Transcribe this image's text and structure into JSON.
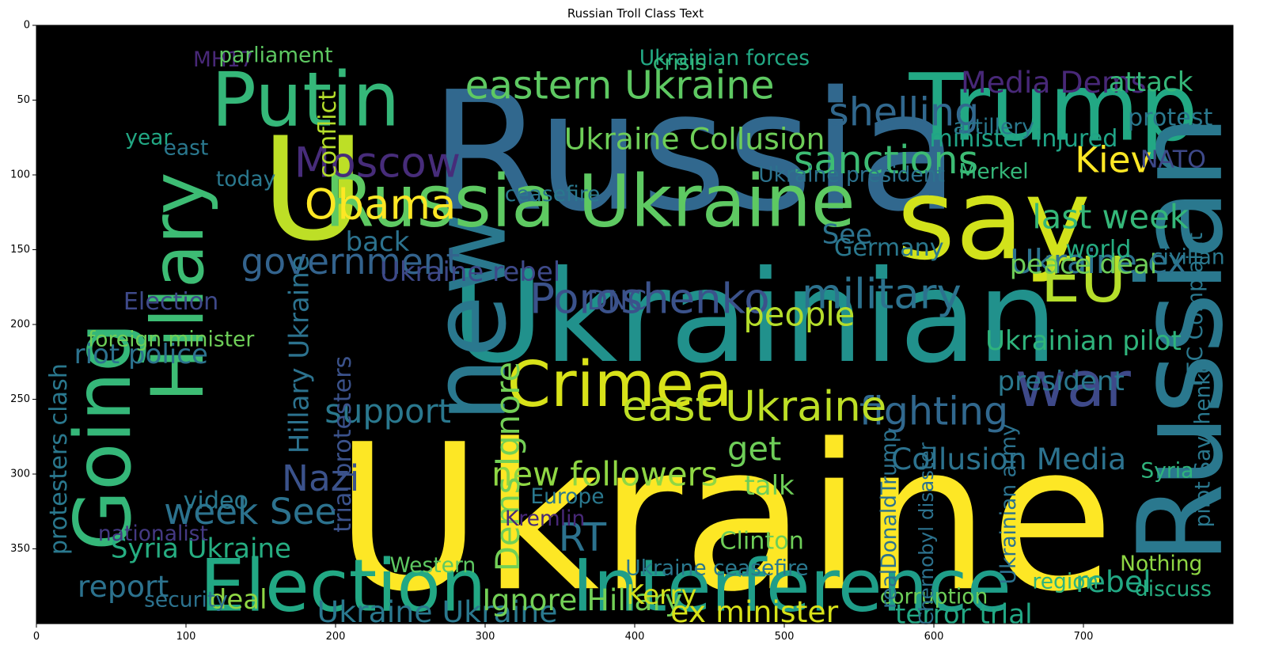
{
  "chart_data": {
    "type": "wordcloud",
    "title": "Russian Troll Class Text",
    "background": "#000000",
    "colormap": "viridis",
    "xlim": [
      0,
      800
    ],
    "ylim": [
      400,
      0
    ],
    "x_ticks": [
      0,
      100,
      200,
      300,
      400,
      500,
      600,
      700
    ],
    "y_ticks": [
      0,
      50,
      100,
      150,
      200,
      250,
      300,
      350
    ],
    "words": [
      {
        "text": "Ukraine",
        "x": 460,
        "y": 330,
        "size": 135,
        "color": "#fde725",
        "rotate": 0
      },
      {
        "text": "Russia",
        "x": 440,
        "y": 85,
        "size": 110,
        "color": "#31688e",
        "rotate": 0
      },
      {
        "text": "Ukrainian",
        "x": 480,
        "y": 195,
        "size": 85,
        "color": "#21918c",
        "rotate": 0
      },
      {
        "text": "Trump",
        "x": 680,
        "y": 55,
        "size": 62,
        "color": "#22a884",
        "rotate": 0
      },
      {
        "text": "say",
        "x": 640,
        "y": 130,
        "size": 75,
        "color": "#d2e21b",
        "rotate": 0
      },
      {
        "text": "U",
        "x": 185,
        "y": 110,
        "size": 95,
        "color": "#bddf26",
        "rotate": 0
      },
      {
        "text": "Russian",
        "x": 765,
        "y": 210,
        "size": 78,
        "color": "#2a788e",
        "rotate": -90
      },
      {
        "text": "new",
        "x": 290,
        "y": 195,
        "size": 68,
        "color": "#2a788e",
        "rotate": -90
      },
      {
        "text": "Putin",
        "x": 180,
        "y": 50,
        "size": 50,
        "color": "#35b779",
        "rotate": 0
      },
      {
        "text": "Hillary",
        "x": 95,
        "y": 175,
        "size": 48,
        "color": "#3dbc74",
        "rotate": -90
      },
      {
        "text": "Going",
        "x": 45,
        "y": 275,
        "size": 52,
        "color": "#35b779",
        "rotate": -90
      },
      {
        "text": "Russia Ukraine",
        "x": 370,
        "y": 118,
        "size": 48,
        "color": "#5ec962",
        "rotate": 0
      },
      {
        "text": "Election",
        "x": 205,
        "y": 375,
        "size": 48,
        "color": "#22a884",
        "rotate": 0
      },
      {
        "text": "Interference",
        "x": 505,
        "y": 375,
        "size": 48,
        "color": "#1f9e89",
        "rotate": 0
      },
      {
        "text": "Crimea",
        "x": 390,
        "y": 240,
        "size": 42,
        "color": "#d8e219",
        "rotate": 0
      },
      {
        "text": "war",
        "x": 693,
        "y": 240,
        "size": 42,
        "color": "#3e4989",
        "rotate": 0
      },
      {
        "text": "EU",
        "x": 700,
        "y": 170,
        "size": 42,
        "color": "#b5de2b",
        "rotate": 0
      },
      {
        "text": "eastern Ukraine",
        "x": 390,
        "y": 40,
        "size": 26,
        "color": "#5ec962",
        "rotate": 0
      },
      {
        "text": "Media Dems",
        "x": 680,
        "y": 38,
        "size": 20,
        "color": "#482878",
        "rotate": 0
      },
      {
        "text": "Ukraine Collusion",
        "x": 440,
        "y": 76,
        "size": 20,
        "color": "#6ece58",
        "rotate": 0
      },
      {
        "text": "shelling",
        "x": 580,
        "y": 58,
        "size": 26,
        "color": "#31688e",
        "rotate": 0
      },
      {
        "text": "sanctions",
        "x": 568,
        "y": 90,
        "size": 26,
        "color": "#3dbc74",
        "rotate": 0
      },
      {
        "text": "Kiev",
        "x": 720,
        "y": 90,
        "size": 24,
        "color": "#fde725",
        "rotate": 0
      },
      {
        "text": "last week",
        "x": 718,
        "y": 128,
        "size": 22,
        "color": "#35b779",
        "rotate": 0
      },
      {
        "text": "Moscow",
        "x": 228,
        "y": 92,
        "size": 28,
        "color": "#472c7a",
        "rotate": 0
      },
      {
        "text": "Obama",
        "x": 230,
        "y": 120,
        "size": 28,
        "color": "#fde725",
        "rotate": 0
      },
      {
        "text": "government",
        "x": 210,
        "y": 158,
        "size": 24,
        "color": "#33638d",
        "rotate": 0
      },
      {
        "text": "Poroshenko",
        "x": 410,
        "y": 183,
        "size": 28,
        "color": "#3b528b",
        "rotate": 0
      },
      {
        "text": "military",
        "x": 565,
        "y": 180,
        "size": 28,
        "color": "#2c728e",
        "rotate": 0
      },
      {
        "text": "people",
        "x": 510,
        "y": 193,
        "size": 22,
        "color": "#b5de2b",
        "rotate": 0
      },
      {
        "text": "Ukraine ex",
        "x": 710,
        "y": 158,
        "size": 22,
        "color": "#2c728e",
        "rotate": 0
      },
      {
        "text": "fighting",
        "x": 600,
        "y": 258,
        "size": 26,
        "color": "#31688e",
        "rotate": 0
      },
      {
        "text": "east Ukraine",
        "x": 480,
        "y": 255,
        "size": 28,
        "color": "#bddf26",
        "rotate": 0
      },
      {
        "text": "get",
        "x": 480,
        "y": 283,
        "size": 22,
        "color": "#6ece58",
        "rotate": 0
      },
      {
        "text": "new followers",
        "x": 380,
        "y": 300,
        "size": 22,
        "color": "#8fd744",
        "rotate": 0
      },
      {
        "text": "support",
        "x": 235,
        "y": 258,
        "size": 22,
        "color": "#2a788e",
        "rotate": 0
      },
      {
        "text": "Nazi",
        "x": 190,
        "y": 303,
        "size": 24,
        "color": "#3b528b",
        "rotate": 0
      },
      {
        "text": "week See",
        "x": 143,
        "y": 325,
        "size": 24,
        "color": "#2c728e",
        "rotate": 0
      },
      {
        "text": "RT",
        "x": 365,
        "y": 342,
        "size": 26,
        "color": "#2c728e",
        "rotate": 0
      },
      {
        "text": "Collusion Media",
        "x": 650,
        "y": 290,
        "size": 20,
        "color": "#2c728e",
        "rotate": 0
      },
      {
        "text": "Ukrainian pilot",
        "x": 700,
        "y": 211,
        "size": 18,
        "color": "#2fb47c",
        "rotate": 0
      },
      {
        "text": "president",
        "x": 685,
        "y": 238,
        "size": 18,
        "color": "#2a788e",
        "rotate": 0
      },
      {
        "text": "peace deal",
        "x": 700,
        "y": 160,
        "size": 18,
        "color": "#6ece58",
        "rotate": 0
      },
      {
        "text": "world",
        "x": 710,
        "y": 150,
        "size": 16,
        "color": "#26ad81",
        "rotate": 0
      },
      {
        "text": "rebel",
        "x": 720,
        "y": 372,
        "size": 20,
        "color": "#22a884",
        "rotate": 0
      },
      {
        "text": "Ukraine Ukraine",
        "x": 268,
        "y": 392,
        "size": 20,
        "color": "#2a788e",
        "rotate": 0
      },
      {
        "text": "Ignore Hillary",
        "x": 365,
        "y": 384,
        "size": 20,
        "color": "#73d056",
        "rotate": 0
      },
      {
        "text": "ex minister",
        "x": 480,
        "y": 392,
        "size": 20,
        "color": "#d8e219",
        "rotate": 0
      },
      {
        "text": "terror trial",
        "x": 620,
        "y": 394,
        "size": 18,
        "color": "#22a884",
        "rotate": 0
      },
      {
        "text": "report",
        "x": 58,
        "y": 375,
        "size": 20,
        "color": "#2c728e",
        "rotate": 0
      },
      {
        "text": "Kerry",
        "x": 418,
        "y": 381,
        "size": 18,
        "color": "#d2e21b",
        "rotate": 0
      },
      {
        "text": "Syria Ukraine",
        "x": 110,
        "y": 350,
        "size": 18,
        "color": "#26ad81",
        "rotate": 0
      },
      {
        "text": "riot police",
        "x": 70,
        "y": 220,
        "size": 18,
        "color": "#2c728e",
        "rotate": 0
      },
      {
        "text": "attack",
        "x": 745,
        "y": 38,
        "size": 18,
        "color": "#35b779",
        "rotate": 0
      },
      {
        "text": "protest",
        "x": 758,
        "y": 62,
        "size": 16,
        "color": "#2a788e",
        "rotate": 0
      },
      {
        "text": "NATO",
        "x": 760,
        "y": 90,
        "size": 16,
        "color": "#3e4989",
        "rotate": 0
      },
      {
        "text": "minister injured",
        "x": 660,
        "y": 76,
        "size": 16,
        "color": "#20a486",
        "rotate": 0
      },
      {
        "text": "Ukraine president",
        "x": 545,
        "y": 100,
        "size": 14,
        "color": "#2c728e",
        "rotate": 0
      },
      {
        "text": "Ukrainian forces",
        "x": 460,
        "y": 22,
        "size": 14,
        "color": "#22a884",
        "rotate": 0
      },
      {
        "text": "Ukraine rebel",
        "x": 290,
        "y": 165,
        "size": 18,
        "color": "#3e4989",
        "rotate": 0
      },
      {
        "text": "DNC",
        "x": 388,
        "y": 184,
        "size": 18,
        "color": "#3b528b",
        "rotate": 0
      },
      {
        "text": "Election",
        "x": 90,
        "y": 185,
        "size": 16,
        "color": "#3e4989",
        "rotate": 0
      },
      {
        "text": "Dems Ignore",
        "x": 315,
        "y": 295,
        "size": 22,
        "color": "#73d056",
        "rotate": -90
      },
      {
        "text": "Hillary Ukraine",
        "x": 176,
        "y": 220,
        "size": 18,
        "color": "#2c728e",
        "rotate": -90
      },
      {
        "text": "Clinton",
        "x": 485,
        "y": 345,
        "size": 16,
        "color": "#6ece58",
        "rotate": 0
      },
      {
        "text": "talk",
        "x": 490,
        "y": 308,
        "size": 18,
        "color": "#6ece58",
        "rotate": 0
      },
      {
        "text": "deal",
        "x": 135,
        "y": 384,
        "size": 18,
        "color": "#8fd744",
        "rotate": 0
      },
      {
        "text": "security",
        "x": 100,
        "y": 384,
        "size": 14,
        "color": "#2c728e",
        "rotate": 0
      },
      {
        "text": "Europe",
        "x": 355,
        "y": 315,
        "size": 14,
        "color": "#2a788e",
        "rotate": 0
      },
      {
        "text": "Western",
        "x": 265,
        "y": 361,
        "size": 14,
        "color": "#5ec962",
        "rotate": 0
      },
      {
        "text": "video",
        "x": 120,
        "y": 318,
        "size": 16,
        "color": "#2a788e",
        "rotate": 0
      },
      {
        "text": "conflict",
        "x": 195,
        "y": 73,
        "size": 16,
        "color": "#b5de2b",
        "rotate": -90
      },
      {
        "text": "back",
        "x": 228,
        "y": 145,
        "size": 18,
        "color": "#2c728e",
        "rotate": 0
      },
      {
        "text": "See",
        "x": 542,
        "y": 140,
        "size": 18,
        "color": "#2c728e",
        "rotate": 0
      },
      {
        "text": "Germany",
        "x": 570,
        "y": 149,
        "size": 16,
        "color": "#2a788e",
        "rotate": 0
      },
      {
        "text": "Merkel",
        "x": 640,
        "y": 98,
        "size": 14,
        "color": "#35b779",
        "rotate": 0
      },
      {
        "text": "Kremlin",
        "x": 340,
        "y": 330,
        "size": 14,
        "color": "#482878",
        "rotate": 0
      },
      {
        "text": "nationalist",
        "x": 78,
        "y": 340,
        "size": 14,
        "color": "#443983",
        "rotate": 0
      },
      {
        "text": "foreign minister",
        "x": 90,
        "y": 210,
        "size": 14,
        "color": "#6ece58",
        "rotate": 0
      },
      {
        "text": "today",
        "x": 140,
        "y": 103,
        "size": 14,
        "color": "#2a788e",
        "rotate": 0
      },
      {
        "text": "year",
        "x": 75,
        "y": 75,
        "size": 14,
        "color": "#22a884",
        "rotate": 0
      },
      {
        "text": "east",
        "x": 100,
        "y": 82,
        "size": 14,
        "color": "#2a788e",
        "rotate": 0
      },
      {
        "text": "MH17",
        "x": 125,
        "y": 23,
        "size": 14,
        "color": "#482878",
        "rotate": 0
      },
      {
        "text": "parliament",
        "x": 160,
        "y": 20,
        "size": 14,
        "color": "#5ec962",
        "rotate": 0
      },
      {
        "text": "crisis",
        "x": 430,
        "y": 25,
        "size": 14,
        "color": "#35b779",
        "rotate": 0
      },
      {
        "text": "artillery",
        "x": 640,
        "y": 68,
        "size": 14,
        "color": "#2a788e",
        "rotate": 0
      },
      {
        "text": "ceasefire",
        "x": 345,
        "y": 113,
        "size": 14,
        "color": "#2a788e",
        "rotate": 0
      },
      {
        "text": "Ukraine ceasefire",
        "x": 455,
        "y": 363,
        "size": 14,
        "color": "#2a788e",
        "rotate": 0
      },
      {
        "text": "Nothing",
        "x": 752,
        "y": 360,
        "size": 14,
        "color": "#8fd744",
        "rotate": 0
      },
      {
        "text": "discuss",
        "x": 760,
        "y": 377,
        "size": 14,
        "color": "#26ad81",
        "rotate": 0
      },
      {
        "text": "region",
        "x": 688,
        "y": 372,
        "size": 14,
        "color": "#2fb47c",
        "rotate": 0
      },
      {
        "text": "corruption",
        "x": 600,
        "y": 382,
        "size": 14,
        "color": "#6ece58",
        "rotate": 0
      },
      {
        "text": "civilian",
        "x": 770,
        "y": 155,
        "size": 14,
        "color": "#2a788e",
        "rotate": 0
      },
      {
        "text": "FEC Complaint",
        "x": 775,
        "y": 190,
        "size": 14,
        "color": "#2a788e",
        "rotate": -90
      },
      {
        "text": "pilot Savchenko",
        "x": 780,
        "y": 280,
        "size": 14,
        "color": "#2a788e",
        "rotate": -90
      },
      {
        "text": "Syria",
        "x": 756,
        "y": 298,
        "size": 14,
        "color": "#2fb47c",
        "rotate": 0
      },
      {
        "text": "protesters clash",
        "x": 15,
        "y": 290,
        "size": 16,
        "color": "#2a788e",
        "rotate": -90
      },
      {
        "text": "trial protesters",
        "x": 205,
        "y": 280,
        "size": 16,
        "color": "#3b528b",
        "rotate": -90
      },
      {
        "text": "realDonaldTrump",
        "x": 570,
        "y": 330,
        "size": 14,
        "color": "#2c728e",
        "rotate": -90
      },
      {
        "text": "Ukrainian army",
        "x": 650,
        "y": 320,
        "size": 14,
        "color": "#2c728e",
        "rotate": -90
      },
      {
        "text": "Chernobyl disaster",
        "x": 595,
        "y": 340,
        "size": 13,
        "color": "#2c728e",
        "rotate": -90
      }
    ]
  }
}
